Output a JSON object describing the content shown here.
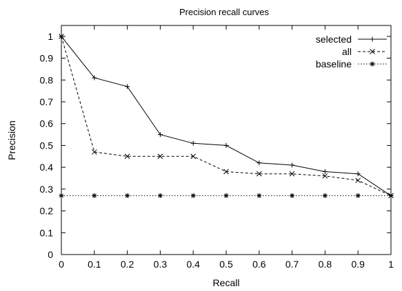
{
  "chart_data": {
    "type": "line",
    "title": "Precision recall curves",
    "xlabel": "Recall",
    "ylabel": "Precision",
    "xlim": [
      0,
      1
    ],
    "ylim": [
      0,
      1.05
    ],
    "xticks": [
      0,
      0.1,
      0.2,
      0.3,
      0.4,
      0.5,
      0.6,
      0.7,
      0.8,
      0.9,
      1
    ],
    "yticks": [
      0,
      0.1,
      0.2,
      0.3,
      0.4,
      0.5,
      0.6,
      0.7,
      0.8,
      0.9,
      1
    ],
    "grid": false,
    "legend_position": "top-right",
    "x": [
      0,
      0.1,
      0.2,
      0.3,
      0.4,
      0.5,
      0.6,
      0.7,
      0.8,
      0.9,
      1
    ],
    "series": [
      {
        "name": "selected",
        "values": [
          1.0,
          0.81,
          0.77,
          0.55,
          0.51,
          0.5,
          0.42,
          0.41,
          0.38,
          0.37,
          0.27
        ],
        "line_style": "solid",
        "marker": "plus"
      },
      {
        "name": "all",
        "values": [
          1.0,
          0.47,
          0.45,
          0.45,
          0.45,
          0.38,
          0.37,
          0.37,
          0.36,
          0.34,
          0.27
        ],
        "line_style": "dashed",
        "marker": "cross"
      },
      {
        "name": "baseline",
        "values": [
          0.27,
          0.27,
          0.27,
          0.27,
          0.27,
          0.27,
          0.27,
          0.27,
          0.27,
          0.27,
          0.27
        ],
        "line_style": "dotted",
        "marker": "star"
      }
    ]
  }
}
